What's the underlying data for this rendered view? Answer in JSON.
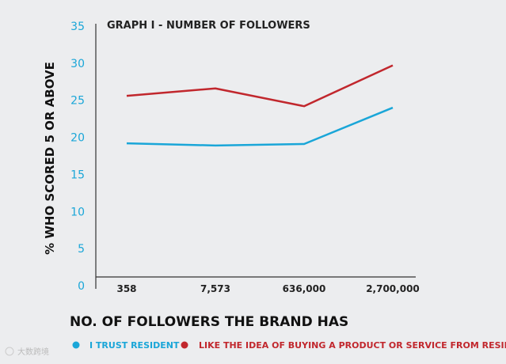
{
  "chart_data": {
    "type": "line",
    "title": "GRAPH I -  NUMBER OF FOLLOWERS",
    "xlabel": "NO. OF FOLLOWERS THE BRAND HAS",
    "ylabel": "% WHO SCORED 5 OR ABOVE",
    "categories": [
      "358",
      "7,573",
      "636,000",
      "2,700,000"
    ],
    "ylim": [
      0,
      35
    ],
    "yticks": [
      0,
      5,
      10,
      15,
      20,
      25,
      30,
      35
    ],
    "grid": false,
    "legend_position": "bottom",
    "series": [
      {
        "name": "I TRUST RESIDENT",
        "color": "#1aa6d8",
        "points": [
          {
            "x": "358",
            "y": 19.2
          },
          {
            "x": "7,573",
            "y": 18.9
          },
          {
            "x": "636,000",
            "y": 19.1
          },
          {
            "x": "2,700,000",
            "y": 24.0
          }
        ]
      },
      {
        "name": "LIKE THE IDEA OF BUYING A  PRODUCT OR SERVICE FROM RESIDENT",
        "color": "#c1272d",
        "points": [
          {
            "x": "358",
            "y": 25.6
          },
          {
            "x": "7,573",
            "y": 26.6
          },
          {
            "x": "636,000",
            "y": 24.2
          },
          {
            "x": "2,700,000",
            "y": 29.7
          }
        ]
      }
    ]
  },
  "watermark": "大数跨境"
}
